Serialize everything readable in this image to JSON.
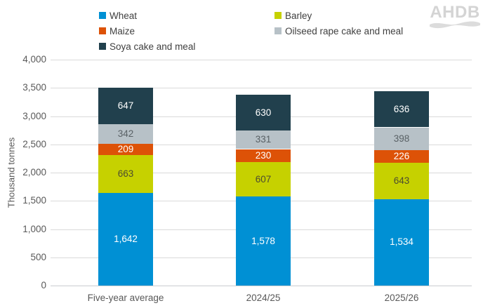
{
  "logo": {
    "text": "AHDB"
  },
  "chart_data": {
    "type": "bar",
    "stacked": true,
    "title": "",
    "xlabel": "",
    "ylabel": "Thousand tonnes",
    "ylim": [
      0,
      4000
    ],
    "ytick_step": 500,
    "yticks": [
      0,
      500,
      1000,
      1500,
      2000,
      2500,
      3000,
      3500,
      4000
    ],
    "grid": true,
    "legend_position": "top",
    "categories": [
      "Five-year average",
      "2024/25",
      "2025/26"
    ],
    "series": [
      {
        "name": "Wheat",
        "color": "#0090d4",
        "label_color": "#ffffff",
        "values": [
          1642,
          1578,
          1534
        ]
      },
      {
        "name": "Barley",
        "color": "#c6d100",
        "label_color": "#4c4c30",
        "values": [
          663,
          607,
          643
        ]
      },
      {
        "name": "Maize",
        "color": "#dd5207",
        "label_color": "#ffffff",
        "values": [
          209,
          230,
          226
        ]
      },
      {
        "name": "Oilseed rape cake and meal",
        "color": "#b7c1c7",
        "label_color": "#596165",
        "values": [
          342,
          331,
          398
        ]
      },
      {
        "name": "Soya cake and meal",
        "color": "#21404d",
        "label_color": "#ffffff",
        "values": [
          647,
          630,
          636
        ]
      }
    ]
  }
}
